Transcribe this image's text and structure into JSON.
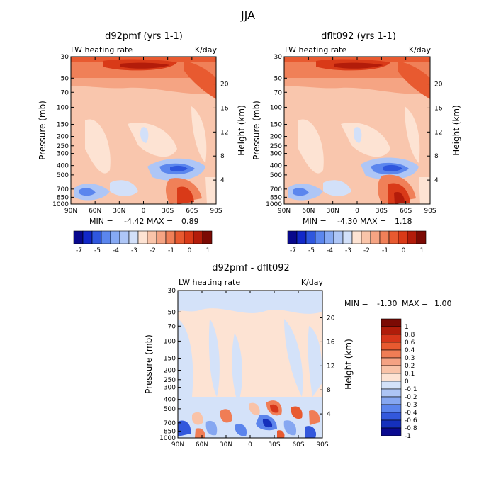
{
  "page_title": "JJA",
  "chart_data": [
    {
      "type": "heatmap",
      "title": "d92pmf (yrs 1-1)",
      "left_string": "LW heating rate",
      "right_string": "K/day",
      "xlabel": "",
      "ylabel": "Pressure (mb)",
      "ylabel_right": "Height (km)",
      "x_ticks": [
        "90N",
        "60N",
        "30N",
        "0",
        "30S",
        "60S",
        "90S"
      ],
      "x_range": [
        90,
        -90
      ],
      "y_ticks": [
        "30",
        "50",
        "70",
        "100",
        "150",
        "200",
        "250",
        "300",
        "400",
        "500",
        "700",
        "850",
        "1000"
      ],
      "y_range": [
        30,
        1000
      ],
      "y_right_ticks": [
        "20",
        "16",
        "12",
        "8",
        "4"
      ],
      "stats": {
        "min_label": "MIN =",
        "min": "-4.42",
        "max_label": "MAX =",
        "max": "0.89"
      },
      "levels": [
        "-7",
        "-5",
        "-4",
        "-3",
        "-2",
        "-1",
        "0",
        "1"
      ],
      "colorbar_orientation": "horizontal"
    },
    {
      "type": "heatmap",
      "title": "dflt092 (yrs 1-1)",
      "left_string": "LW heating rate",
      "right_string": "K/day",
      "xlabel": "",
      "ylabel": "Pressure (mb)",
      "ylabel_right": "Height (km)",
      "x_ticks": [
        "90N",
        "60N",
        "30N",
        "0",
        "30S",
        "60S",
        "90S"
      ],
      "x_range": [
        90,
        -90
      ],
      "y_ticks": [
        "30",
        "50",
        "70",
        "100",
        "150",
        "200",
        "250",
        "300",
        "400",
        "500",
        "700",
        "850",
        "1000"
      ],
      "y_range": [
        30,
        1000
      ],
      "y_right_ticks": [
        "20",
        "16",
        "12",
        "8",
        "4"
      ],
      "stats": {
        "min_label": "MIN =",
        "min": "-4.30",
        "max_label": "MAX =",
        "max": "1.18"
      },
      "levels": [
        "-7",
        "-5",
        "-4",
        "-3",
        "-2",
        "-1",
        "0",
        "1"
      ],
      "colorbar_orientation": "horizontal"
    },
    {
      "type": "heatmap",
      "title": "d92pmf - dflt092",
      "left_string": "LW heating rate",
      "right_string": "K/day",
      "xlabel": "",
      "ylabel": "Pressure (mb)",
      "ylabel_right": "Height (km)",
      "x_ticks": [
        "90N",
        "60N",
        "30N",
        "0",
        "30S",
        "60S",
        "90S"
      ],
      "x_range": [
        90,
        -90
      ],
      "y_ticks": [
        "30",
        "50",
        "70",
        "100",
        "150",
        "200",
        "250",
        "300",
        "400",
        "500",
        "700",
        "850",
        "1000"
      ],
      "y_range": [
        30,
        1000
      ],
      "y_right_ticks": [
        "20",
        "16",
        "12",
        "8",
        "4"
      ],
      "stats": {
        "min_label": "MIN =",
        "min": "-1.30",
        "max_label": "MAX =",
        "max": "1.00"
      },
      "levels": [
        "1",
        "0.8",
        "0.6",
        "0.4",
        "0.3",
        "0.2",
        "0.1",
        "0",
        "-0.1",
        "-0.2",
        "-0.3",
        "-0.4",
        "-0.6",
        "-0.8",
        "-1"
      ],
      "colorbar_orientation": "vertical"
    }
  ],
  "palette": {
    "cb_main": [
      "#08088c",
      "#1228c9",
      "#2f57de",
      "#5b86ee",
      "#86a9f3",
      "#aec6f6",
      "#d2e0f9",
      "#fde3d3",
      "#f9c4a9",
      "#f5a483",
      "#f08058",
      "#e85a30",
      "#d93a18",
      "#b31c0a",
      "#7c0a04"
    ],
    "cb_diff": [
      "#7c0a04",
      "#b01c0a",
      "#d6361a",
      "#e85a30",
      "#f07d55",
      "#f5a283",
      "#f9c3a8",
      "#fde3d3",
      "#d4e2f9",
      "#adc5f5",
      "#86a7f1",
      "#5b84ec",
      "#3358dc",
      "#1530bc",
      "#0a0a90"
    ]
  }
}
